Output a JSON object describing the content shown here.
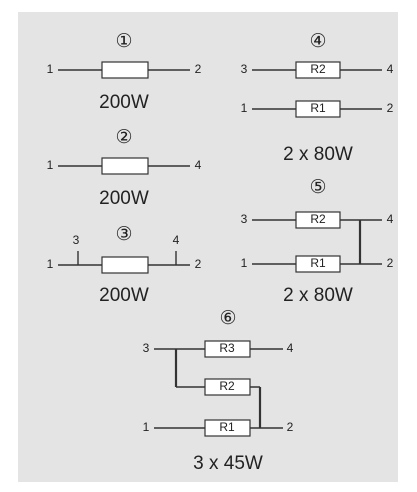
{
  "diagrams": [
    {
      "number": "①",
      "terminals": [
        "1",
        "2"
      ],
      "rating": "200W"
    },
    {
      "number": "②",
      "terminals": [
        "1",
        "4"
      ],
      "rating": "200W"
    },
    {
      "number": "③",
      "terminals": [
        "3",
        "4",
        "1",
        "2"
      ],
      "rating": "200W"
    },
    {
      "number": "④",
      "terminals": [
        "3",
        "4",
        "1",
        "2"
      ],
      "resistors": [
        "R2",
        "R1"
      ],
      "rating": "2 x 80W"
    },
    {
      "number": "⑤",
      "terminals": [
        "3",
        "4",
        "1",
        "2"
      ],
      "resistors": [
        "R2",
        "R1"
      ],
      "rating": "2 x 80W"
    },
    {
      "number": "⑥",
      "terminals": [
        "3",
        "4",
        "1",
        "2"
      ],
      "resistors": [
        "R3",
        "R2",
        "R1"
      ],
      "rating": "3 x 45W"
    }
  ]
}
